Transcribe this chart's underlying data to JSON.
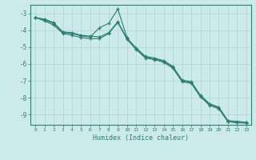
{
  "xlabel": "Humidex (Indice chaleur)",
  "xlim": [
    -0.5,
    23.5
  ],
  "ylim": [
    -9.6,
    -2.5
  ],
  "yticks": [
    -9,
    -8,
    -7,
    -6,
    -5,
    -4,
    -3
  ],
  "xticks": [
    0,
    1,
    2,
    3,
    4,
    5,
    6,
    7,
    8,
    9,
    10,
    11,
    12,
    13,
    14,
    15,
    16,
    17,
    18,
    19,
    20,
    21,
    22,
    23
  ],
  "bg_color": "#cceaea",
  "grid_color": "#aed4d4",
  "line_color": "#2d7d74",
  "line1_x": [
    0,
    1,
    2,
    3,
    4,
    5,
    6,
    7,
    8,
    9,
    10,
    11,
    12,
    13,
    14,
    15,
    16,
    17,
    18,
    19,
    20,
    21,
    22,
    23
  ],
  "line1_y": [
    -3.25,
    -3.35,
    -3.55,
    -4.1,
    -4.15,
    -4.3,
    -4.35,
    -4.4,
    -4.15,
    -3.5,
    -4.5,
    -5.05,
    -5.55,
    -5.65,
    -5.8,
    -6.15,
    -6.95,
    -7.05,
    -7.85,
    -8.35,
    -8.55,
    -9.35,
    -9.4,
    -9.45
  ],
  "line2_x": [
    0,
    1,
    2,
    3,
    4,
    5,
    6,
    7,
    8,
    9,
    10,
    11,
    12,
    13,
    14,
    15,
    16,
    17,
    18,
    19,
    20,
    21,
    22,
    23
  ],
  "line2_y": [
    -3.25,
    -3.4,
    -3.6,
    -4.15,
    -4.2,
    -4.35,
    -4.4,
    -3.85,
    -3.6,
    -2.75,
    -4.45,
    -5.1,
    -5.6,
    -5.7,
    -5.85,
    -6.2,
    -7.0,
    -7.1,
    -7.9,
    -8.4,
    -8.6,
    -9.4,
    -9.45,
    -9.45
  ],
  "line3_x": [
    0,
    1,
    2,
    3,
    4,
    5,
    6,
    7,
    8,
    9,
    10,
    11,
    12,
    13,
    14,
    15,
    16,
    17,
    18,
    19,
    20,
    21,
    22,
    23
  ],
  "line3_y": [
    -3.25,
    -3.45,
    -3.7,
    -4.2,
    -4.3,
    -4.45,
    -4.5,
    -4.5,
    -4.2,
    -3.55,
    -4.55,
    -5.15,
    -5.65,
    -5.75,
    -5.9,
    -6.25,
    -7.05,
    -7.15,
    -7.95,
    -8.45,
    -8.65,
    -9.42,
    -9.48,
    -9.5
  ]
}
